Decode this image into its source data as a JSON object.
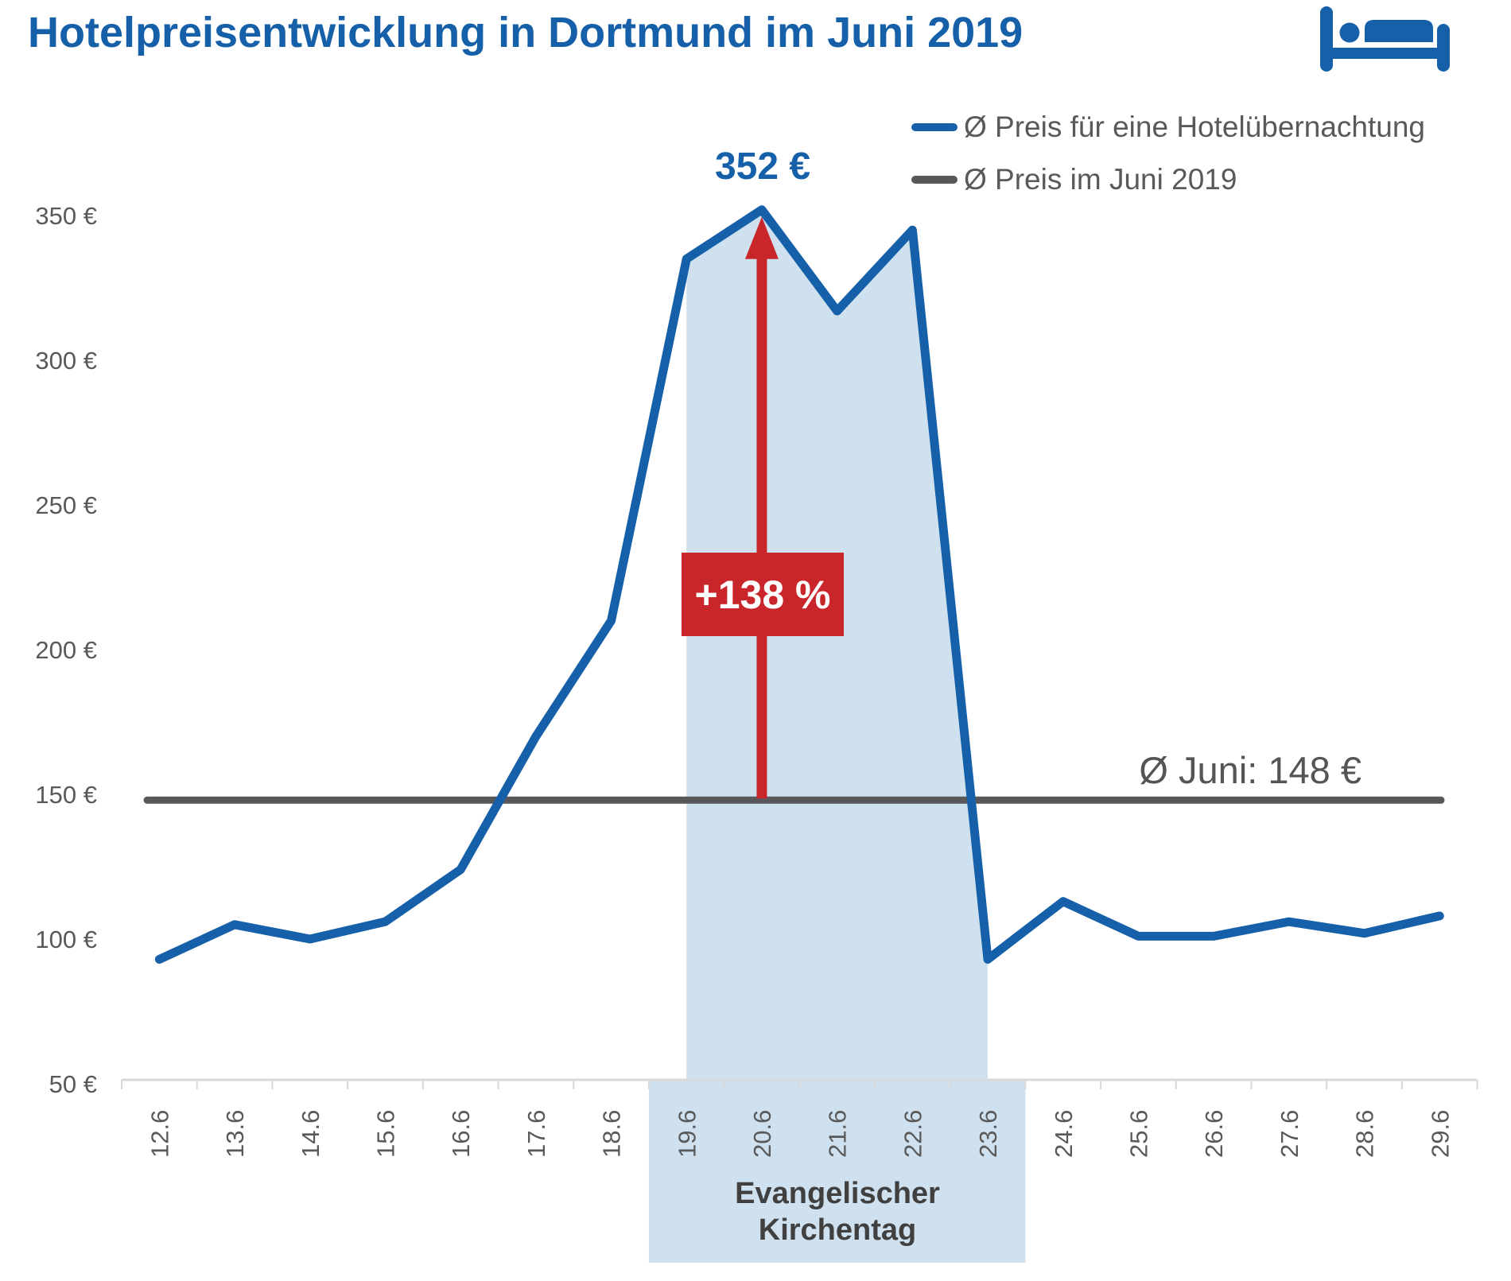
{
  "header": {
    "title": "Hotelpreisentwicklung in Dortmund im Juni 2019"
  },
  "legend": [
    {
      "label": "Ø Preis für eine Hotelübernachtung",
      "color": "#1560a8"
    },
    {
      "label": "Ø Preis im Juni 2019",
      "color": "#58585a"
    }
  ],
  "annotations": {
    "peak_label": "352 €",
    "increase_label": "+138 %",
    "average_label": "Ø Juni: 148 €",
    "event_label_line1": "Evangelischer",
    "event_label_line2": "Kirchentag"
  },
  "chart_data": {
    "type": "line",
    "title": "Hotelpreisentwicklung in Dortmund im Juni 2019",
    "categories": [
      "12.6",
      "13.6",
      "14.6",
      "15.6",
      "16.6",
      "17.6",
      "18.6",
      "19.6",
      "20.6",
      "21.6",
      "22.6",
      "23.6",
      "24.6",
      "25.6",
      "26.6",
      "27.6",
      "28.6",
      "29.6"
    ],
    "series": [
      {
        "name": "Ø Preis für eine Hotelübernachtung",
        "color": "#1560a8",
        "values": [
          93,
          105,
          100,
          106,
          124,
          170,
          210,
          335,
          352,
          317,
          345,
          93,
          113,
          101,
          101,
          106,
          102,
          108
        ]
      },
      {
        "name": "Ø Preis im Juni 2019",
        "color": "#58585a",
        "type": "constant",
        "value": 148
      }
    ],
    "y_ticks": [
      350,
      300,
      250,
      200,
      150,
      100,
      50
    ],
    "y_tick_suffix": " €",
    "ylim": [
      50,
      365
    ],
    "grid": "off",
    "legend_position": "top-right",
    "peak": {
      "category": "20.6",
      "value": 352,
      "label": "352 €"
    },
    "average_value": 148,
    "increase_percent": "+138 %",
    "highlight_band": {
      "from": "19.6",
      "to": "23.6",
      "label": "Evangelischer Kirchentag",
      "color": "#cfe0ee"
    }
  },
  "colors": {
    "brand_blue": "#1560a8",
    "light_blue": "#cfe0ee",
    "red": "#c9262c",
    "dark_gray_line": "#58585a",
    "text_gray": "#595959",
    "axis_gray": "#d9d9d9",
    "event_text": "#404040",
    "average_label_gray": "#555555",
    "background": "#ffffff"
  }
}
